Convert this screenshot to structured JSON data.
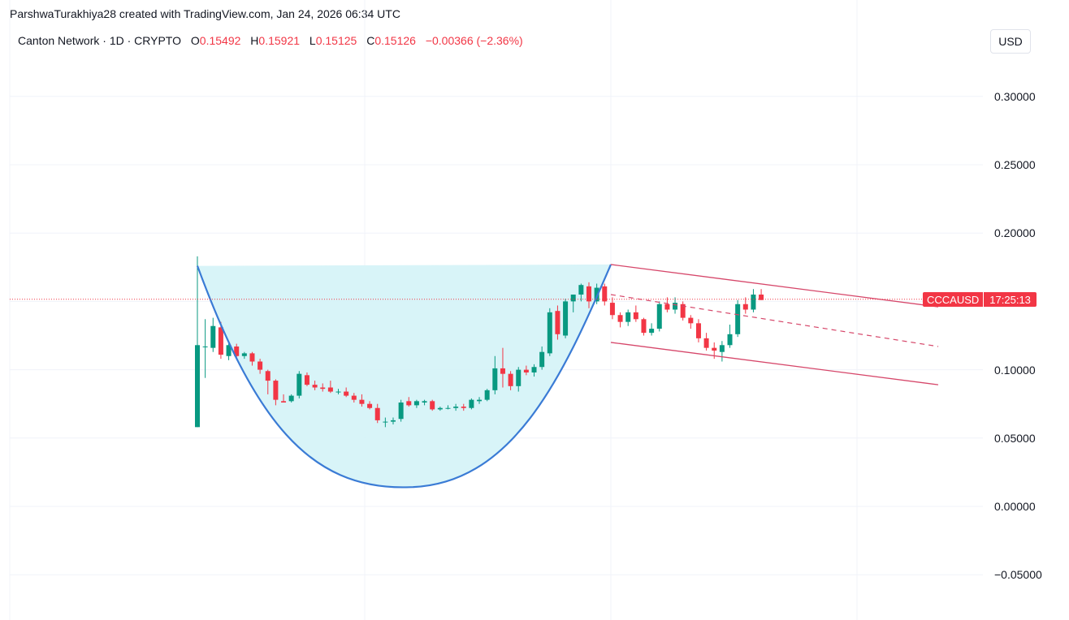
{
  "header": {
    "attribution": "ParshwaTurakhiya28 created with TradingView.com, Jan 24, 2026 06:34 UTC"
  },
  "legend": {
    "symbol": "Canton Network · 1D · CRYPTO",
    "open_label": "O",
    "open": "0.15492",
    "high_label": "H",
    "high": "0.15921",
    "low_label": "L",
    "low": "0.15125",
    "close_label": "C",
    "close": "0.15126",
    "change": "−0.00366 (−2.36%)"
  },
  "currency_button": "USD",
  "price_tag": {
    "symbol": "CCCAUSD",
    "countdown": "17:25:13"
  },
  "colors": {
    "up": "#089981",
    "down": "#f23645",
    "cup_line": "#3a7bd5",
    "cup_fill": "#d4f3f7",
    "channel": "#d6476a",
    "grid": "#f0f3fa"
  },
  "chart_data": {
    "type": "candlestick",
    "title": "Canton Network · 1D · CRYPTO (CCCAUSD)",
    "xlabel": "",
    "ylabel": "USD",
    "ylim": [
      -0.07,
      0.37
    ],
    "y_ticks": [
      "0.30000",
      "0.25000",
      "0.20000",
      "0.10000",
      "0.05000",
      "0.00000",
      "−0.05000"
    ],
    "y_tick_values": [
      0.3,
      0.25,
      0.2,
      0.1,
      0.05,
      0.0,
      -0.05
    ],
    "grid": true,
    "last_price": 0.15126,
    "candles": [
      {
        "o": 0.058,
        "h": 0.183,
        "l": 0.058,
        "c": 0.118
      },
      {
        "o": 0.117,
        "h": 0.137,
        "l": 0.094,
        "c": 0.117
      },
      {
        "o": 0.116,
        "h": 0.138,
        "l": 0.113,
        "c": 0.132
      },
      {
        "o": 0.131,
        "h": 0.135,
        "l": 0.108,
        "c": 0.111
      },
      {
        "o": 0.11,
        "h": 0.12,
        "l": 0.107,
        "c": 0.118
      },
      {
        "o": 0.117,
        "h": 0.119,
        "l": 0.108,
        "c": 0.11
      },
      {
        "o": 0.11,
        "h": 0.113,
        "l": 0.108,
        "c": 0.112
      },
      {
        "o": 0.112,
        "h": 0.113,
        "l": 0.103,
        "c": 0.106
      },
      {
        "o": 0.106,
        "h": 0.108,
        "l": 0.097,
        "c": 0.1
      },
      {
        "o": 0.099,
        "h": 0.1,
        "l": 0.082,
        "c": 0.092
      },
      {
        "o": 0.092,
        "h": 0.093,
        "l": 0.074,
        "c": 0.078
      },
      {
        "o": 0.077,
        "h": 0.082,
        "l": 0.076,
        "c": 0.076
      },
      {
        "o": 0.077,
        "h": 0.082,
        "l": 0.076,
        "c": 0.081
      },
      {
        "o": 0.081,
        "h": 0.099,
        "l": 0.079,
        "c": 0.097
      },
      {
        "o": 0.096,
        "h": 0.098,
        "l": 0.088,
        "c": 0.089
      },
      {
        "o": 0.089,
        "h": 0.092,
        "l": 0.085,
        "c": 0.087
      },
      {
        "o": 0.087,
        "h": 0.09,
        "l": 0.084,
        "c": 0.086
      },
      {
        "o": 0.087,
        "h": 0.092,
        "l": 0.083,
        "c": 0.084
      },
      {
        "o": 0.084,
        "h": 0.086,
        "l": 0.082,
        "c": 0.084
      },
      {
        "o": 0.084,
        "h": 0.087,
        "l": 0.08,
        "c": 0.081
      },
      {
        "o": 0.081,
        "h": 0.083,
        "l": 0.076,
        "c": 0.078
      },
      {
        "o": 0.078,
        "h": 0.082,
        "l": 0.073,
        "c": 0.075
      },
      {
        "o": 0.075,
        "h": 0.077,
        "l": 0.071,
        "c": 0.072
      },
      {
        "o": 0.072,
        "h": 0.075,
        "l": 0.061,
        "c": 0.063
      },
      {
        "o": 0.062,
        "h": 0.065,
        "l": 0.058,
        "c": 0.062
      },
      {
        "o": 0.062,
        "h": 0.065,
        "l": 0.06,
        "c": 0.063
      },
      {
        "o": 0.064,
        "h": 0.078,
        "l": 0.062,
        "c": 0.076
      },
      {
        "o": 0.077,
        "h": 0.08,
        "l": 0.073,
        "c": 0.074
      },
      {
        "o": 0.074,
        "h": 0.078,
        "l": 0.072,
        "c": 0.077
      },
      {
        "o": 0.076,
        "h": 0.078,
        "l": 0.074,
        "c": 0.077
      },
      {
        "o": 0.077,
        "h": 0.078,
        "l": 0.07,
        "c": 0.071
      },
      {
        "o": 0.071,
        "h": 0.073,
        "l": 0.07,
        "c": 0.072
      },
      {
        "o": 0.072,
        "h": 0.074,
        "l": 0.071,
        "c": 0.072
      },
      {
        "o": 0.072,
        "h": 0.075,
        "l": 0.07,
        "c": 0.073
      },
      {
        "o": 0.073,
        "h": 0.075,
        "l": 0.07,
        "c": 0.072
      },
      {
        "o": 0.072,
        "h": 0.079,
        "l": 0.071,
        "c": 0.078
      },
      {
        "o": 0.077,
        "h": 0.08,
        "l": 0.075,
        "c": 0.078
      },
      {
        "o": 0.078,
        "h": 0.086,
        "l": 0.077,
        "c": 0.085
      },
      {
        "o": 0.085,
        "h": 0.11,
        "l": 0.082,
        "c": 0.101
      },
      {
        "o": 0.101,
        "h": 0.116,
        "l": 0.087,
        "c": 0.097
      },
      {
        "o": 0.097,
        "h": 0.099,
        "l": 0.085,
        "c": 0.088
      },
      {
        "o": 0.088,
        "h": 0.102,
        "l": 0.084,
        "c": 0.1
      },
      {
        "o": 0.1,
        "h": 0.103,
        "l": 0.096,
        "c": 0.098
      },
      {
        "o": 0.098,
        "h": 0.104,
        "l": 0.095,
        "c": 0.102
      },
      {
        "o": 0.102,
        "h": 0.117,
        "l": 0.1,
        "c": 0.113
      },
      {
        "o": 0.112,
        "h": 0.145,
        "l": 0.11,
        "c": 0.142
      },
      {
        "o": 0.143,
        "h": 0.147,
        "l": 0.122,
        "c": 0.126
      },
      {
        "o": 0.125,
        "h": 0.152,
        "l": 0.123,
        "c": 0.15
      },
      {
        "o": 0.15,
        "h": 0.155,
        "l": 0.142,
        "c": 0.155
      },
      {
        "o": 0.155,
        "h": 0.163,
        "l": 0.15,
        "c": 0.162
      },
      {
        "o": 0.161,
        "h": 0.164,
        "l": 0.145,
        "c": 0.15
      },
      {
        "o": 0.15,
        "h": 0.163,
        "l": 0.148,
        "c": 0.16
      },
      {
        "o": 0.161,
        "h": 0.163,
        "l": 0.147,
        "c": 0.15
      },
      {
        "o": 0.149,
        "h": 0.153,
        "l": 0.137,
        "c": 0.14
      },
      {
        "o": 0.14,
        "h": 0.142,
        "l": 0.131,
        "c": 0.135
      },
      {
        "o": 0.135,
        "h": 0.144,
        "l": 0.132,
        "c": 0.142
      },
      {
        "o": 0.142,
        "h": 0.147,
        "l": 0.135,
        "c": 0.137
      },
      {
        "o": 0.137,
        "h": 0.138,
        "l": 0.125,
        "c": 0.127
      },
      {
        "o": 0.127,
        "h": 0.134,
        "l": 0.125,
        "c": 0.13
      },
      {
        "o": 0.13,
        "h": 0.15,
        "l": 0.128,
        "c": 0.148
      },
      {
        "o": 0.148,
        "h": 0.153,
        "l": 0.142,
        "c": 0.144
      },
      {
        "o": 0.144,
        "h": 0.153,
        "l": 0.141,
        "c": 0.149
      },
      {
        "o": 0.148,
        "h": 0.15,
        "l": 0.136,
        "c": 0.138
      },
      {
        "o": 0.138,
        "h": 0.14,
        "l": 0.13,
        "c": 0.134
      },
      {
        "o": 0.134,
        "h": 0.137,
        "l": 0.12,
        "c": 0.123
      },
      {
        "o": 0.123,
        "h": 0.127,
        "l": 0.114,
        "c": 0.116
      },
      {
        "o": 0.116,
        "h": 0.12,
        "l": 0.108,
        "c": 0.114
      },
      {
        "o": 0.113,
        "h": 0.121,
        "l": 0.106,
        "c": 0.118
      },
      {
        "o": 0.118,
        "h": 0.133,
        "l": 0.116,
        "c": 0.126
      },
      {
        "o": 0.126,
        "h": 0.151,
        "l": 0.124,
        "c": 0.148
      },
      {
        "o": 0.148,
        "h": 0.153,
        "l": 0.141,
        "c": 0.144
      },
      {
        "o": 0.144,
        "h": 0.159,
        "l": 0.142,
        "c": 0.155
      },
      {
        "o": 0.155,
        "h": 0.159,
        "l": 0.151,
        "c": 0.151
      }
    ],
    "annotations": [
      {
        "type": "cup",
        "label": "Cup pattern (filled arc)",
        "left_rim_price": 0.176,
        "right_rim_price": 0.177,
        "bottom_price": 0.014
      },
      {
        "type": "descending_channel",
        "upper_line": [
          0.177,
          0.146
        ],
        "midline": [
          0.155,
          0.117
        ],
        "lower_line": [
          0.12,
          0.089
        ]
      }
    ]
  }
}
